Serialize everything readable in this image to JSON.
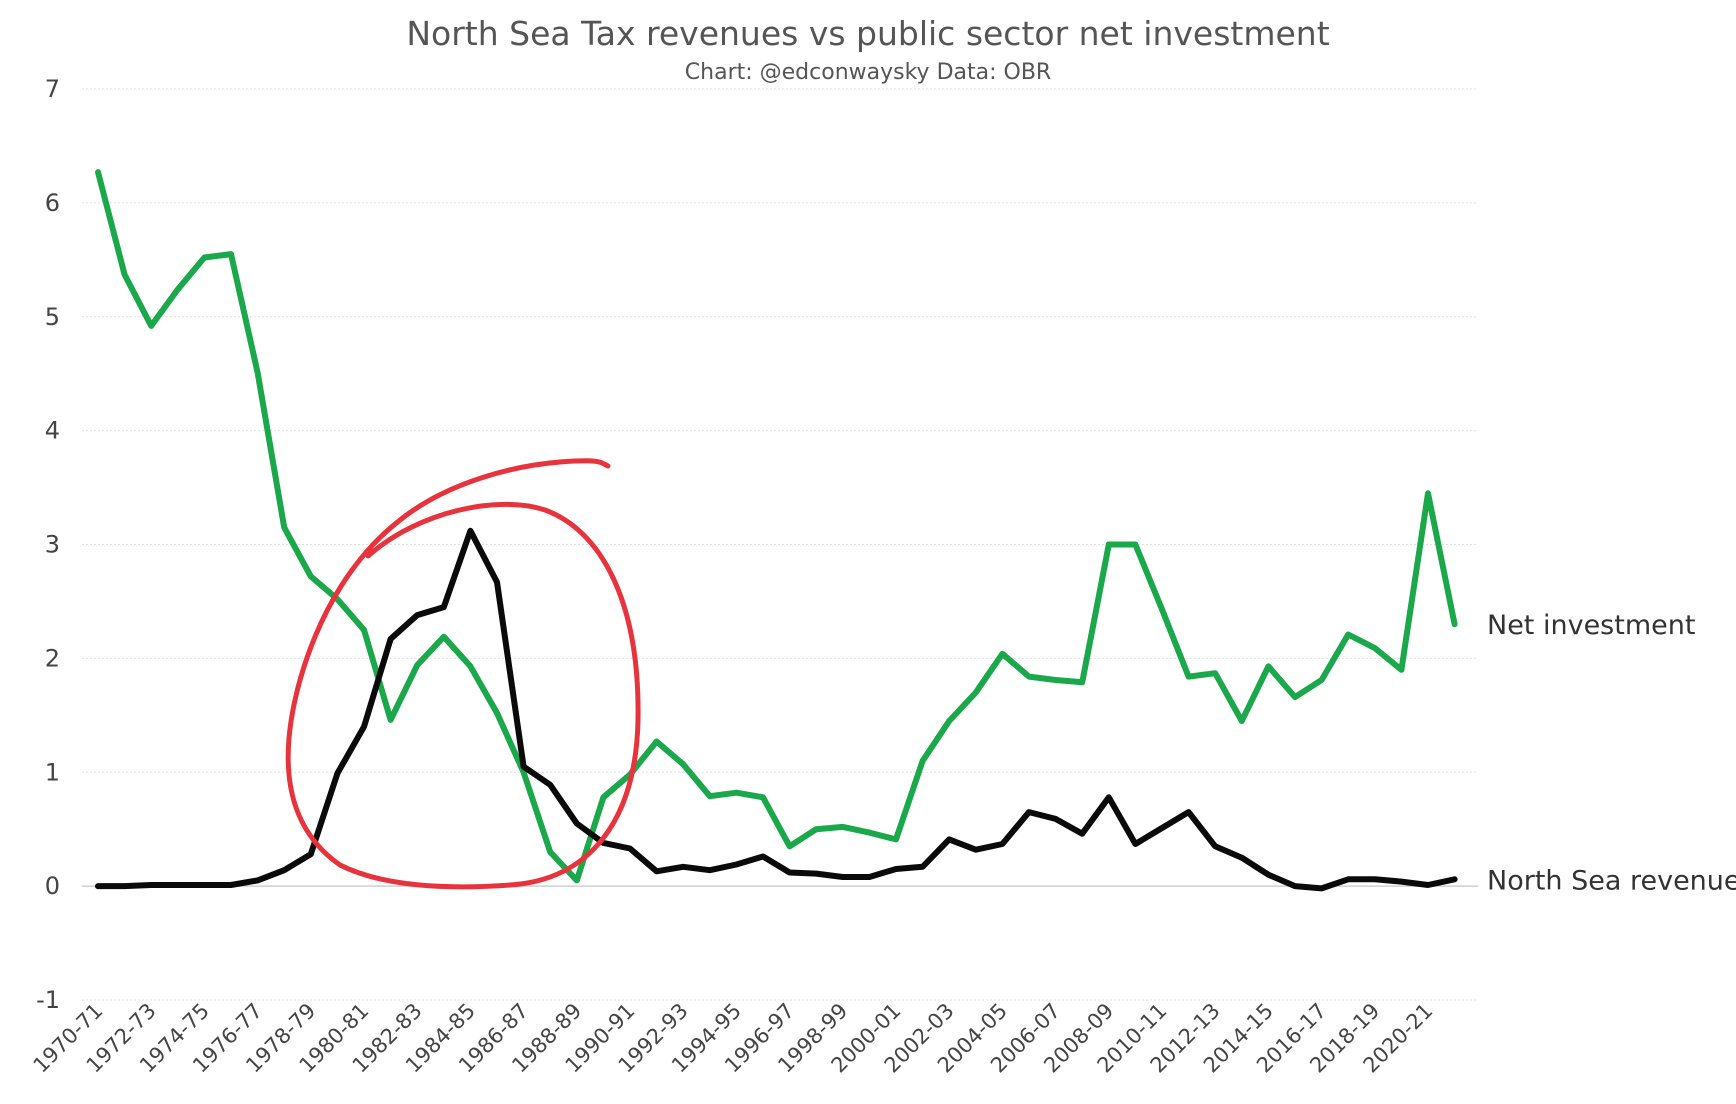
{
  "chart_data": {
    "type": "line",
    "title": "North Sea Tax revenues vs public sector net investment",
    "subtitle": "Chart: @edconwaysky Data: OBR",
    "ylim": [
      -1,
      7
    ],
    "yticks": [
      "-1",
      "0",
      "1",
      "2",
      "3",
      "4",
      "5",
      "6",
      "7"
    ],
    "grid": "horizontal",
    "categories": [
      "1970-71",
      "1971-72",
      "1972-73",
      "1973-74",
      "1974-75",
      "1975-76",
      "1976-77",
      "1977-78",
      "1978-79",
      "1979-80",
      "1980-81",
      "1981-82",
      "1982-83",
      "1983-84",
      "1984-85",
      "1985-86",
      "1986-87",
      "1987-88",
      "1988-89",
      "1989-90",
      "1990-91",
      "1991-92",
      "1992-93",
      "1993-94",
      "1994-95",
      "1995-96",
      "1996-97",
      "1997-98",
      "1998-99",
      "1999-00",
      "2000-01",
      "2001-02",
      "2002-03",
      "2003-04",
      "2004-05",
      "2005-06",
      "2006-07",
      "2007-08",
      "2008-09",
      "2009-10",
      "2010-11",
      "2011-12",
      "2012-13",
      "2013-14",
      "2014-15",
      "2015-16",
      "2016-17",
      "2017-18",
      "2018-19",
      "2019-20",
      "2020-21",
      "2021-22"
    ],
    "xtick_labels": [
      "1970-71",
      "1972-73",
      "1974-75",
      "1976-77",
      "1978-79",
      "1980-81",
      "1982-83",
      "1984-85",
      "1986-87",
      "1988-89",
      "1990-91",
      "1992-93",
      "1994-95",
      "1996-97",
      "1998-99",
      "2000-01",
      "2002-03",
      "2004-05",
      "2006-07",
      "2008-09",
      "2010-11",
      "2012-13",
      "2014-15",
      "2016-17",
      "2018-19",
      "2020-21"
    ],
    "series": [
      {
        "name": "Net investment",
        "color": "#1aa84b",
        "values": [
          6.27,
          5.37,
          4.92,
          5.24,
          5.52,
          5.55,
          4.51,
          3.15,
          2.72,
          2.52,
          2.25,
          1.46,
          1.94,
          2.19,
          1.93,
          1.52,
          1.0,
          0.3,
          0.05,
          0.78,
          0.98,
          1.27,
          1.07,
          0.79,
          0.82,
          0.78,
          0.35,
          0.5,
          0.52,
          0.47,
          0.41,
          1.1,
          1.45,
          1.7,
          2.04,
          1.84,
          1.81,
          1.79,
          3.0,
          3.0,
          2.43,
          1.84,
          1.87,
          1.45,
          1.93,
          1.66,
          1.81,
          2.21,
          2.09,
          1.9,
          3.45,
          2.3
        ]
      },
      {
        "name": "North Sea revenues",
        "color": "#0a0a0a",
        "values": [
          0.0,
          0.0,
          0.01,
          0.01,
          0.01,
          0.01,
          0.05,
          0.14,
          0.28,
          0.99,
          1.4,
          2.17,
          2.38,
          2.45,
          3.12,
          2.67,
          1.05,
          0.89,
          0.55,
          0.38,
          0.33,
          0.13,
          0.17,
          0.14,
          0.19,
          0.26,
          0.12,
          0.11,
          0.08,
          0.08,
          0.15,
          0.17,
          0.41,
          0.32,
          0.37,
          0.65,
          0.59,
          0.46,
          0.78,
          0.37,
          0.51,
          0.65,
          0.35,
          0.25,
          0.1,
          0.0,
          -0.02,
          0.06,
          0.06,
          0.04,
          0.01,
          0.06
        ]
      }
    ],
    "annotation": {
      "type": "hand-drawn circle",
      "color": "#e8333d"
    }
  }
}
